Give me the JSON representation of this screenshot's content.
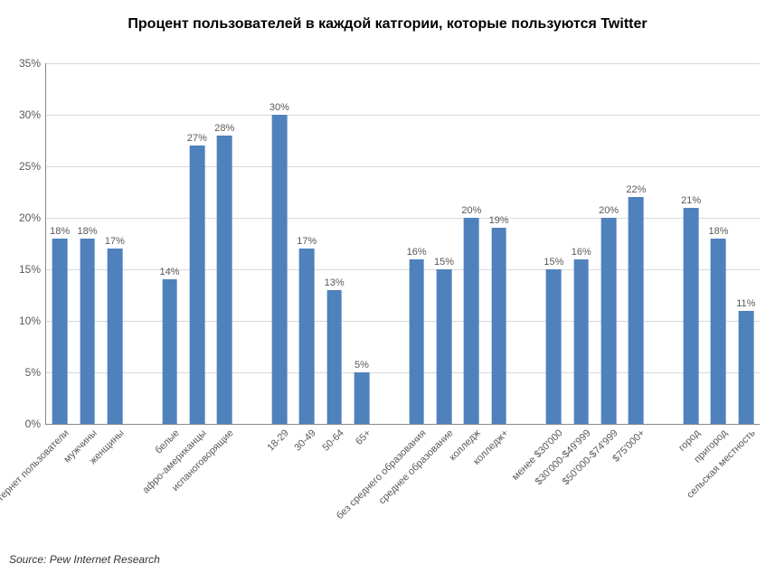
{
  "chart": {
    "type": "bar",
    "title": "Процент пользователей в каждой катгории, которые пользуются Twitter",
    "title_fontsize": 16,
    "title_fontweight": "bold",
    "background_color": "#ffffff",
    "grid_color": "#d9d9d9",
    "axis_color": "#888888",
    "label_color": "#595959",
    "bar_color": "#4f81bd",
    "bar_width_ratio": 0.55,
    "value_label_fontsize": 11,
    "x_label_fontsize": 11,
    "y_label_fontsize": 12,
    "x_label_rotation_deg": -45,
    "ylim": [
      0,
      35
    ],
    "ytick_step": 5,
    "ytick_suffix": "%",
    "value_suffix": "%",
    "slots": [
      {
        "label": "все интернет пользователи",
        "value": 18
      },
      {
        "label": "мужчины",
        "value": 18
      },
      {
        "label": "женщины",
        "value": 17
      },
      {
        "label": "",
        "value": null
      },
      {
        "label": "белые",
        "value": 14
      },
      {
        "label": "афро-американцы",
        "value": 27
      },
      {
        "label": "испаноговорящие",
        "value": 28
      },
      {
        "label": "",
        "value": null
      },
      {
        "label": "18-29",
        "value": 30
      },
      {
        "label": "30-49",
        "value": 17
      },
      {
        "label": "50-64",
        "value": 13
      },
      {
        "label": "65+",
        "value": 5
      },
      {
        "label": "",
        "value": null
      },
      {
        "label": "без среднего образования",
        "value": 16
      },
      {
        "label": "среднее образование",
        "value": 15
      },
      {
        "label": "колледж",
        "value": 20
      },
      {
        "label": "колледж+",
        "value": 19
      },
      {
        "label": "",
        "value": null
      },
      {
        "label": "менее $30'000",
        "value": 15
      },
      {
        "label": "$30'000-$49'999",
        "value": 16
      },
      {
        "label": "$50'000-$74'999",
        "value": 20
      },
      {
        "label": "$75'000+",
        "value": 22
      },
      {
        "label": "",
        "value": null
      },
      {
        "label": "город",
        "value": 21
      },
      {
        "label": "пригород",
        "value": 18
      },
      {
        "label": "сельская местность",
        "value": 11
      }
    ],
    "source_label": "Source: Pew Internet Research"
  }
}
